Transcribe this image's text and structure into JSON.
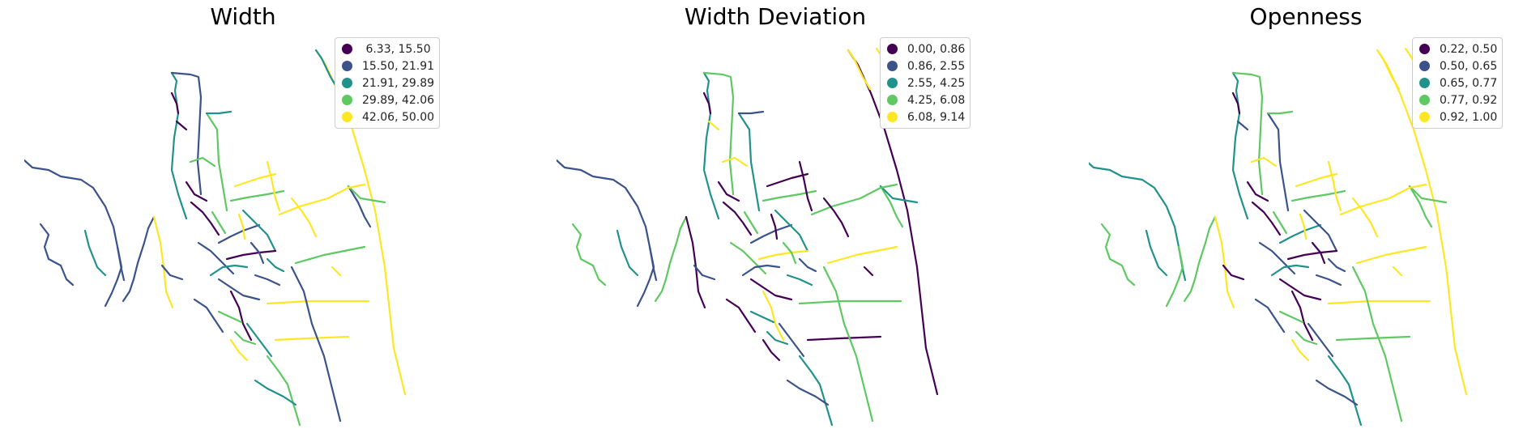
{
  "colors": [
    "#440154",
    "#3b528b",
    "#21918c",
    "#5ec962",
    "#fde725"
  ],
  "panels": [
    {
      "title": "Width",
      "legend": [
        " 6.33, 15.50",
        "15.50, 21.91",
        "21.91, 29.89",
        "29.89, 42.06",
        "42.06, 50.00"
      ],
      "roads": [
        4,
        2,
        2,
        1,
        3,
        4,
        3,
        4,
        4,
        1,
        1,
        2,
        1,
        1,
        4,
        2,
        1,
        0,
        0,
        3,
        2,
        3,
        0,
        1,
        3,
        2,
        1,
        1,
        0,
        2,
        3,
        1,
        2,
        1,
        4,
        4,
        4,
        4,
        0,
        2,
        1,
        3,
        4,
        1,
        2,
        3,
        3,
        0,
        1,
        4
      ]
    },
    {
      "title": "Width Deviation",
      "legend": [
        "0.00, 0.86",
        "0.86, 2.55",
        "2.55, 4.25",
        "4.25, 6.08",
        "6.08, 9.14"
      ],
      "roads": [
        0,
        4,
        4,
        3,
        2,
        3,
        4,
        3,
        0,
        1,
        3,
        2,
        3,
        1,
        0,
        2,
        3,
        4,
        0,
        2,
        1,
        4,
        0,
        1,
        3,
        2,
        3,
        0,
        4,
        1,
        2,
        3,
        1,
        0,
        0,
        0,
        0,
        0,
        4,
        1,
        2,
        3,
        0,
        3,
        1,
        2,
        2,
        0,
        1,
        0
      ]
    },
    {
      "title": "Openness",
      "legend": [
        "0.22, 0.50",
        "0.50, 0.65",
        "0.65, 0.77",
        "0.77, 0.92",
        "0.92, 1.00"
      ],
      "roads": [
        4,
        4,
        4,
        3,
        3,
        4,
        4,
        4,
        3,
        2,
        3,
        2,
        3,
        3,
        4,
        2,
        3,
        1,
        0,
        1,
        3,
        4,
        0,
        2,
        3,
        1,
        1,
        0,
        0,
        1,
        2,
        3,
        1,
        1,
        4,
        4,
        4,
        4,
        0,
        2,
        1,
        3,
        4,
        0,
        1,
        3,
        3,
        0,
        0,
        4
      ]
    }
  ]
}
